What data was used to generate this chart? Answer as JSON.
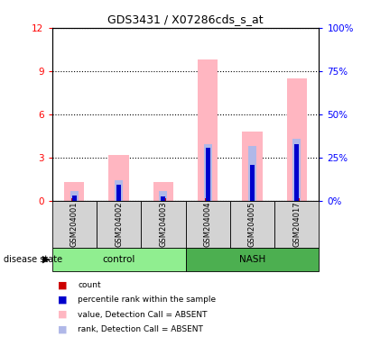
{
  "title": "GDS3431 / X07286cds_s_at",
  "samples": [
    "GSM204001",
    "GSM204002",
    "GSM204003",
    "GSM204004",
    "GSM204005",
    "GSM204017"
  ],
  "value_absent": [
    1.3,
    3.2,
    1.3,
    9.8,
    4.8,
    8.5
  ],
  "rank_absent": [
    0.7,
    1.4,
    0.65,
    3.9,
    3.8,
    4.3
  ],
  "count_red": [
    0.18,
    0.18,
    0.18,
    0.18,
    0.18,
    0.18
  ],
  "percentile_blue": [
    0.35,
    1.1,
    0.3,
    3.7,
    2.5,
    3.9
  ],
  "ylim_left": [
    0,
    12
  ],
  "ylim_right": [
    0,
    100
  ],
  "yticks_left": [
    0,
    3,
    6,
    9,
    12
  ],
  "ytick_labels_left": [
    "0",
    "3",
    "6",
    "9",
    "12"
  ],
  "yticks_right": [
    0,
    25,
    50,
    75,
    100
  ],
  "ytick_labels_right": [
    "0%",
    "25%",
    "50%",
    "75%",
    "100%"
  ],
  "color_value_absent": "#ffb6c1",
  "color_rank_absent": "#b0b8e8",
  "color_count": "#cc0000",
  "color_percentile": "#0000cc",
  "bg_color_plot": "#ffffff",
  "bg_color_sample": "#d3d3d3",
  "control_color": "#90ee90",
  "nash_color": "#4caf50",
  "legend_items": [
    {
      "label": "count",
      "color": "#cc0000"
    },
    {
      "label": "percentile rank within the sample",
      "color": "#0000cc"
    },
    {
      "label": "value, Detection Call = ABSENT",
      "color": "#ffb6c1"
    },
    {
      "label": "rank, Detection Call = ABSENT",
      "color": "#b0b8e8"
    }
  ]
}
